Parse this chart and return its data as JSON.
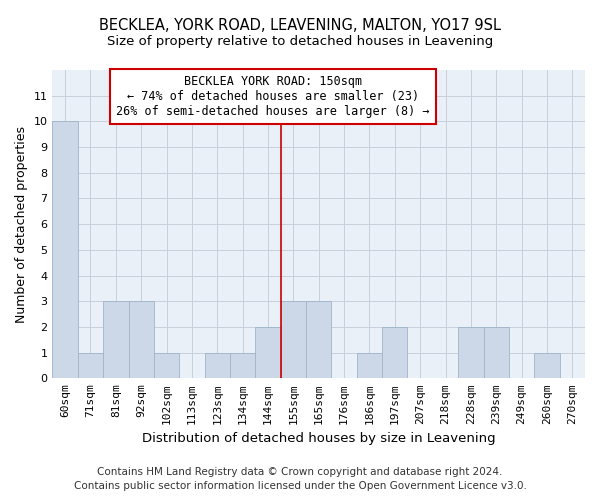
{
  "title": "BECKLEA, YORK ROAD, LEAVENING, MALTON, YO17 9SL",
  "subtitle": "Size of property relative to detached houses in Leavening",
  "xlabel": "Distribution of detached houses by size in Leavening",
  "ylabel": "Number of detached properties",
  "categories": [
    "60sqm",
    "71sqm",
    "81sqm",
    "92sqm",
    "102sqm",
    "113sqm",
    "123sqm",
    "134sqm",
    "144sqm",
    "155sqm",
    "165sqm",
    "176sqm",
    "186sqm",
    "197sqm",
    "207sqm",
    "218sqm",
    "228sqm",
    "239sqm",
    "249sqm",
    "260sqm",
    "270sqm"
  ],
  "values": [
    10,
    1,
    3,
    3,
    1,
    0,
    1,
    1,
    2,
    3,
    3,
    0,
    1,
    2,
    0,
    0,
    2,
    2,
    0,
    1,
    0
  ],
  "bar_color": "#ccd8e8",
  "bar_edge_color": "#a0b4c8",
  "property_line_index": 9,
  "property_label": "BECKLEA YORK ROAD: 150sqm",
  "annotation_line1": "← 74% of detached houses are smaller (23)",
  "annotation_line2": "26% of semi-detached houses are larger (8) →",
  "line_color": "#cc0000",
  "ylim": [
    0,
    12
  ],
  "yticks": [
    0,
    1,
    2,
    3,
    4,
    5,
    6,
    7,
    8,
    9,
    10,
    11
  ],
  "footer1": "Contains HM Land Registry data © Crown copyright and database right 2024.",
  "footer2": "Contains public sector information licensed under the Open Government Licence v3.0.",
  "bg_color": "#eaf0f8",
  "grid_color": "#c8d0dc",
  "title_fontsize": 10.5,
  "subtitle_fontsize": 9.5,
  "xlabel_fontsize": 9.5,
  "ylabel_fontsize": 9,
  "tick_fontsize": 8,
  "annot_fontsize": 8.5,
  "footer_fontsize": 7.5
}
